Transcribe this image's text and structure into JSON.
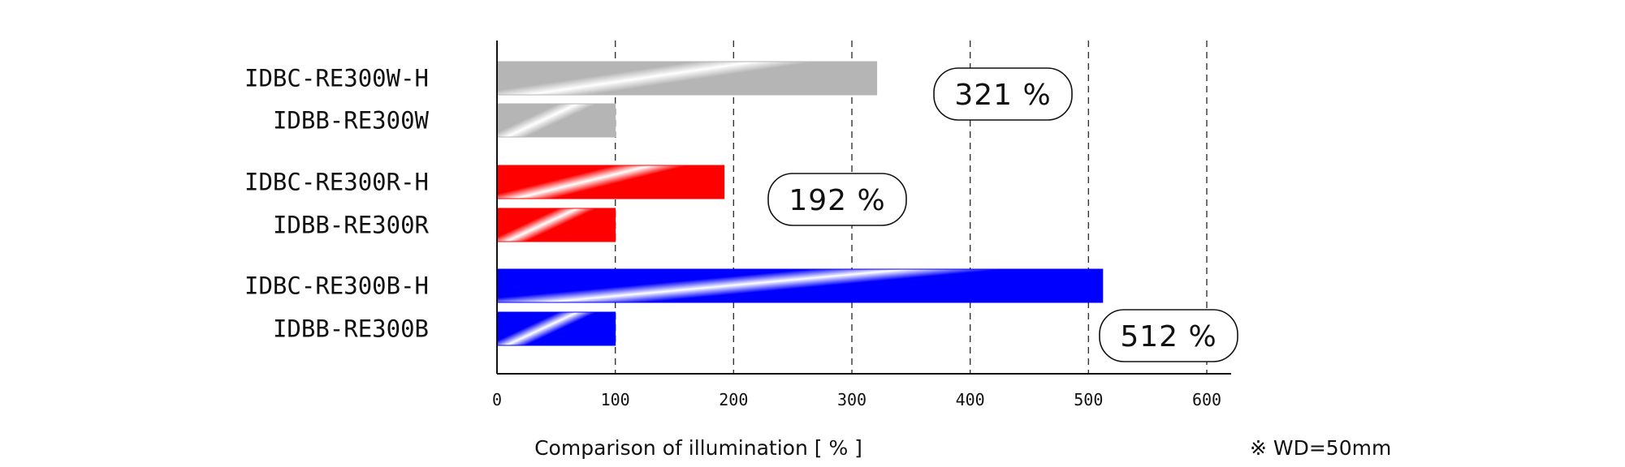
{
  "chart_data": {
    "type": "bar",
    "orientation": "horizontal",
    "categories": [
      "IDBC-RE300W-H",
      "IDBB-RE300W",
      "IDBC-RE300R-H",
      "IDBB-RE300R",
      "IDBC-RE300B-H",
      "IDBB-RE300B"
    ],
    "values": [
      321,
      100,
      192,
      100,
      512,
      100
    ],
    "bar_colors": [
      "#b5b5b5",
      "#b5b5b5",
      "#ff0000",
      "#ff0000",
      "#0000ff",
      "#0000ff"
    ],
    "xlim": [
      0,
      600
    ],
    "xticks": [
      "0",
      "100",
      "200",
      "300",
      "400",
      "500",
      "600"
    ],
    "xlabel": "Comparison of illumination [ % ]",
    "grid": "vertical-dashed",
    "annotations": [
      "321 %",
      "192 %",
      "512 %"
    ],
    "note": "※ WD=50mm"
  }
}
